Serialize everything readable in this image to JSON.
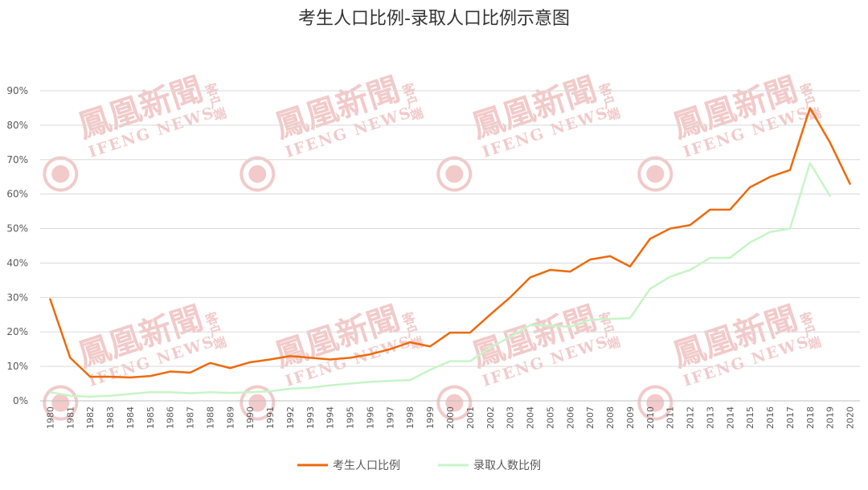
{
  "watermark": {
    "brand": "鳳凰新聞",
    "english": "IFENG NEWS",
    "suffix": "客户端",
    "color": "#e8a0a0"
  },
  "chart_data": {
    "type": "line",
    "title": "考生人口比例-录取人口比例示意图",
    "xlabel": "",
    "ylabel": "",
    "ylim": [
      0,
      90
    ],
    "yticks": [
      "0%",
      "10%",
      "20%",
      "30%",
      "40%",
      "50%",
      "60%",
      "70%",
      "80%",
      "90%"
    ],
    "grid": true,
    "legend_position": "bottom",
    "categories": [
      "1980",
      "1981",
      "1982",
      "1983",
      "1984",
      "1985",
      "1986",
      "1987",
      "1988",
      "1989",
      "1990",
      "1991",
      "1992",
      "1993",
      "1994",
      "1995",
      "1996",
      "1997",
      "1998",
      "1999",
      "2000",
      "2001",
      "2002",
      "2003",
      "2004",
      "2005",
      "2006",
      "2007",
      "2008",
      "2009",
      "2010",
      "2011",
      "2012",
      "2013",
      "2014",
      "2015",
      "2016",
      "2017",
      "2018",
      "2019",
      "2020"
    ],
    "series": [
      {
        "name": "考生人口比例",
        "color": "#ed6a0c",
        "values": [
          29.5,
          12.5,
          7,
          7,
          6.8,
          7.2,
          8.5,
          8.2,
          11,
          9.5,
          11.2,
          12,
          13,
          12.5,
          12,
          12.5,
          13.5,
          15,
          17,
          15.8,
          19.8,
          19.8,
          25,
          30,
          35.8,
          38,
          37.5,
          41,
          42,
          39,
          47,
          50,
          51,
          55.5,
          55.5,
          62,
          65,
          67,
          85,
          75,
          63
        ]
      },
      {
        "name": "录取人数比例",
        "color": "#c6f5c6",
        "values": [
          2.5,
          1.5,
          1.2,
          1.5,
          2,
          2.5,
          2.5,
          2.2,
          2.5,
          2.3,
          2.5,
          2.8,
          3.5,
          3.8,
          4.5,
          5,
          5.5,
          5.8,
          6,
          9,
          11.5,
          11.5,
          15.5,
          18.5,
          22,
          21.8,
          21.5,
          23.5,
          23.8,
          24,
          32.5,
          36,
          38,
          41.5,
          41.5,
          46,
          49,
          50,
          69,
          59.5,
          null
        ]
      }
    ]
  }
}
